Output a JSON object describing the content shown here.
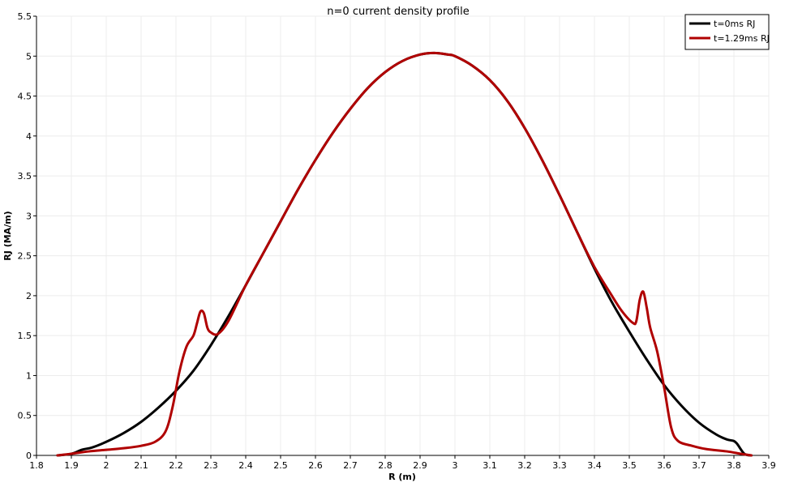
{
  "chart_data": {
    "type": "line",
    "title": "n=0 current density profile",
    "xlabel": "R (m)",
    "ylabel": "RJ (MA/m)",
    "xlim": [
      1.8,
      3.9
    ],
    "ylim": [
      0,
      5.5
    ],
    "grid": true,
    "legend_position": "top-right",
    "x_ticks": [
      "1.8",
      "1.9",
      "2",
      "2.1",
      "2.2",
      "2.3",
      "2.4",
      "2.5",
      "2.6",
      "2.7",
      "2.8",
      "2.9",
      "3",
      "3.1",
      "3.2",
      "3.3",
      "3.4",
      "3.5",
      "3.6",
      "3.7",
      "3.8",
      "3.9"
    ],
    "y_ticks": [
      "0",
      "0.5",
      "1",
      "1.5",
      "2",
      "2.5",
      "3",
      "3.5",
      "4",
      "4.5",
      "5",
      "5.5"
    ],
    "series": [
      {
        "name": "t=0ms RJ",
        "color": "#000000",
        "points": [
          [
            1.86,
            0.0
          ],
          [
            1.9,
            0.02
          ],
          [
            1.93,
            0.07
          ],
          [
            1.96,
            0.1
          ],
          [
            2.0,
            0.17
          ],
          [
            2.05,
            0.28
          ],
          [
            2.1,
            0.42
          ],
          [
            2.15,
            0.6
          ],
          [
            2.2,
            0.81
          ],
          [
            2.25,
            1.06
          ],
          [
            2.3,
            1.38
          ],
          [
            2.35,
            1.74
          ],
          [
            2.4,
            2.13
          ],
          [
            2.45,
            2.53
          ],
          [
            2.5,
            2.93
          ],
          [
            2.55,
            3.33
          ],
          [
            2.6,
            3.7
          ],
          [
            2.65,
            4.04
          ],
          [
            2.7,
            4.34
          ],
          [
            2.75,
            4.6
          ],
          [
            2.8,
            4.8
          ],
          [
            2.85,
            4.94
          ],
          [
            2.9,
            5.02
          ],
          [
            2.94,
            5.04
          ],
          [
            2.98,
            5.02
          ],
          [
            3.0,
            5.0
          ],
          [
            3.05,
            4.88
          ],
          [
            3.1,
            4.7
          ],
          [
            3.15,
            4.44
          ],
          [
            3.2,
            4.1
          ],
          [
            3.25,
            3.7
          ],
          [
            3.3,
            3.26
          ],
          [
            3.35,
            2.8
          ],
          [
            3.4,
            2.34
          ],
          [
            3.45,
            1.92
          ],
          [
            3.5,
            1.55
          ],
          [
            3.55,
            1.2
          ],
          [
            3.6,
            0.88
          ],
          [
            3.65,
            0.62
          ],
          [
            3.7,
            0.41
          ],
          [
            3.75,
            0.26
          ],
          [
            3.78,
            0.2
          ],
          [
            3.8,
            0.18
          ],
          [
            3.81,
            0.14
          ],
          [
            3.83,
            0.02
          ],
          [
            3.85,
            0.0
          ]
        ]
      },
      {
        "name": "t=1.29ms RJ",
        "color": "#b00000",
        "points": [
          [
            1.86,
            0.0
          ],
          [
            1.9,
            0.02
          ],
          [
            1.95,
            0.05
          ],
          [
            2.0,
            0.07
          ],
          [
            2.05,
            0.09
          ],
          [
            2.1,
            0.12
          ],
          [
            2.14,
            0.17
          ],
          [
            2.17,
            0.3
          ],
          [
            2.19,
            0.6
          ],
          [
            2.21,
            1.05
          ],
          [
            2.23,
            1.36
          ],
          [
            2.25,
            1.5
          ],
          [
            2.26,
            1.65
          ],
          [
            2.27,
            1.8
          ],
          [
            2.28,
            1.78
          ],
          [
            2.29,
            1.6
          ],
          [
            2.3,
            1.54
          ],
          [
            2.32,
            1.52
          ],
          [
            2.35,
            1.68
          ],
          [
            2.4,
            2.13
          ],
          [
            2.45,
            2.53
          ],
          [
            2.5,
            2.93
          ],
          [
            2.55,
            3.33
          ],
          [
            2.6,
            3.7
          ],
          [
            2.65,
            4.04
          ],
          [
            2.7,
            4.34
          ],
          [
            2.75,
            4.6
          ],
          [
            2.8,
            4.8
          ],
          [
            2.85,
            4.94
          ],
          [
            2.9,
            5.02
          ],
          [
            2.94,
            5.04
          ],
          [
            2.98,
            5.02
          ],
          [
            3.0,
            5.0
          ],
          [
            3.05,
            4.88
          ],
          [
            3.1,
            4.7
          ],
          [
            3.15,
            4.44
          ],
          [
            3.2,
            4.1
          ],
          [
            3.25,
            3.7
          ],
          [
            3.3,
            3.26
          ],
          [
            3.35,
            2.8
          ],
          [
            3.4,
            2.36
          ],
          [
            3.45,
            2.0
          ],
          [
            3.48,
            1.8
          ],
          [
            3.51,
            1.66
          ],
          [
            3.52,
            1.68
          ],
          [
            3.53,
            1.95
          ],
          [
            3.54,
            2.05
          ],
          [
            3.55,
            1.85
          ],
          [
            3.56,
            1.6
          ],
          [
            3.58,
            1.3
          ],
          [
            3.6,
            0.85
          ],
          [
            3.62,
            0.35
          ],
          [
            3.64,
            0.18
          ],
          [
            3.68,
            0.12
          ],
          [
            3.72,
            0.08
          ],
          [
            3.78,
            0.05
          ],
          [
            3.82,
            0.02
          ],
          [
            3.85,
            0.0
          ]
        ]
      }
    ]
  }
}
